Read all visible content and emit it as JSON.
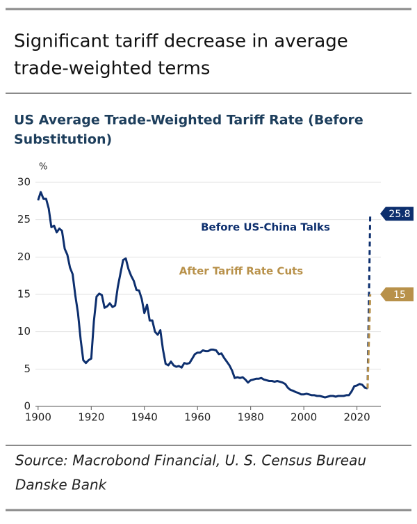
{
  "header": {
    "title": [
      "Significant tariff decrease in average",
      "trade-weighted terms"
    ]
  },
  "chart_data": {
    "type": "line",
    "title": [
      "US Average Trade-Weighted Tariff Rate (Before",
      "Substitution)"
    ],
    "y_unit": "%",
    "xlim": [
      1899,
      2029
    ],
    "xticks": [
      1900,
      1920,
      1940,
      1960,
      1980,
      2000,
      2020
    ],
    "ylim": [
      0,
      30
    ],
    "yticks": [
      0,
      5,
      10,
      15,
      20,
      25,
      30
    ],
    "grid": true,
    "series": [
      {
        "color": "#0d2f6e",
        "style": "solid",
        "x": [
          1900,
          1901,
          1902,
          1903,
          1904,
          1905,
          1906,
          1907,
          1908,
          1909,
          1910,
          1911,
          1912,
          1913,
          1914,
          1915,
          1916,
          1917,
          1918,
          1919,
          1920,
          1921,
          1922,
          1923,
          1924,
          1925,
          1926,
          1927,
          1928,
          1929,
          1930,
          1931,
          1932,
          1933,
          1934,
          1935,
          1936,
          1937,
          1938,
          1939,
          1940,
          1941,
          1942,
          1943,
          1944,
          1945,
          1946,
          1947,
          1948,
          1949,
          1950,
          1951,
          1952,
          1953,
          1954,
          1955,
          1956,
          1957,
          1958,
          1959,
          1960,
          1961,
          1962,
          1963,
          1964,
          1965,
          1966,
          1967,
          1968,
          1969,
          1970,
          1971,
          1972,
          1973,
          1974,
          1975,
          1976,
          1977,
          1978,
          1979,
          1980,
          1981,
          1982,
          1983,
          1984,
          1985,
          1986,
          1987,
          1988,
          1989,
          1990,
          1991,
          1992,
          1993,
          1994,
          1995,
          1996,
          1997,
          1998,
          1999,
          2000,
          2001,
          2002,
          2003,
          2004,
          2005,
          2006,
          2007,
          2008,
          2009,
          2010,
          2011,
          2012,
          2013,
          2014,
          2015,
          2016,
          2017,
          2018,
          2019,
          2020,
          2021,
          2022,
          2023,
          2024
        ],
        "values": [
          27.6,
          28.7,
          27.8,
          27.8,
          26.5,
          24.0,
          24.2,
          23.3,
          23.8,
          23.5,
          21.1,
          20.3,
          18.6,
          17.7,
          14.9,
          12.5,
          9.0,
          6.2,
          5.8,
          6.2,
          6.4,
          11.4,
          14.7,
          15.1,
          14.9,
          13.2,
          13.4,
          13.8,
          13.3,
          13.5,
          16.0,
          17.8,
          19.6,
          19.8,
          18.4,
          17.5,
          16.8,
          15.6,
          15.5,
          14.4,
          12.5,
          13.6,
          11.5,
          11.5,
          10.0,
          9.6,
          10.2,
          7.6,
          5.7,
          5.5,
          6.0,
          5.5,
          5.3,
          5.4,
          5.2,
          5.8,
          5.7,
          5.8,
          6.4,
          7.0,
          7.2,
          7.2,
          7.5,
          7.4,
          7.4,
          7.6,
          7.6,
          7.5,
          7.0,
          7.1,
          6.5,
          6.0,
          5.5,
          4.8,
          3.8,
          3.9,
          3.8,
          3.9,
          3.6,
          3.2,
          3.5,
          3.6,
          3.7,
          3.7,
          3.8,
          3.6,
          3.5,
          3.4,
          3.4,
          3.3,
          3.4,
          3.3,
          3.2,
          3.0,
          2.5,
          2.2,
          2.1,
          1.9,
          1.8,
          1.6,
          1.6,
          1.7,
          1.6,
          1.5,
          1.5,
          1.4,
          1.4,
          1.3,
          1.2,
          1.3,
          1.4,
          1.4,
          1.3,
          1.4,
          1.4,
          1.4,
          1.5,
          1.5,
          2.0,
          2.7,
          2.8,
          3.0,
          2.9,
          2.5,
          2.4
        ]
      },
      {
        "name": "Before US-China Talks",
        "color": "#0d2f6e",
        "style": "dashed",
        "x": [
          2024,
          2025
        ],
        "values": [
          2.4,
          25.8
        ]
      },
      {
        "name": "After Tariff Rate Cuts",
        "color": "#b8914a",
        "style": "dashed",
        "x": [
          2024,
          2025
        ],
        "values": [
          2.4,
          15.0
        ]
      }
    ]
  },
  "source": [
    "Source: Macrobond Financial, U. S. Census Bureau",
    "Danske Bank"
  ]
}
